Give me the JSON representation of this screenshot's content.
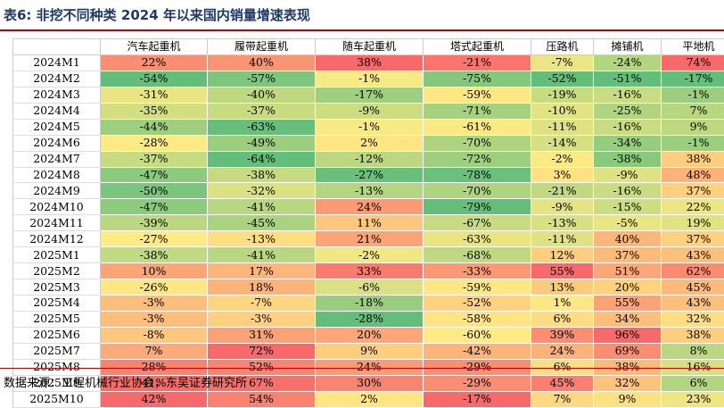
{
  "title": "表6:  非挖不同种类 2024 年以来国内销量增速表现",
  "source": "数据来源：工程机械行业协会，东吴证券研究所",
  "columns": [
    "汽车起重机",
    "履带起重机",
    "随车起重机",
    "塔式起重机",
    "压路机",
    "摊铺机",
    "平地机"
  ],
  "rows": [
    {
      "label": "2024M1",
      "values": [
        "22%",
        "40%",
        "38%",
        "-21%",
        "-7%",
        "-24%",
        "74%"
      ]
    },
    {
      "label": "2024M2",
      "values": [
        "-54%",
        "-57%",
        "-1%",
        "-75%",
        "-52%",
        "-51%",
        "-17%"
      ]
    },
    {
      "label": "2024M3",
      "values": [
        "-31%",
        "-40%",
        "-17%",
        "-59%",
        "-19%",
        "-16%",
        "-1%"
      ]
    },
    {
      "label": "2024M4",
      "values": [
        "-35%",
        "-37%",
        "-9%",
        "-71%",
        "-10%",
        "-25%",
        "7%"
      ]
    },
    {
      "label": "2024M5",
      "values": [
        "-44%",
        "-63%",
        "-1%",
        "-61%",
        "-11%",
        "-16%",
        "9%"
      ]
    },
    {
      "label": "2024M6",
      "values": [
        "-28%",
        "-49%",
        "2%",
        "-70%",
        "-14%",
        "-34%",
        "-1%"
      ]
    },
    {
      "label": "2024M7",
      "values": [
        "-37%",
        "-64%",
        "-12%",
        "-72%",
        "-2%",
        "-38%",
        "38%"
      ]
    },
    {
      "label": "2024M8",
      "values": [
        "-47%",
        "-38%",
        "-27%",
        "-78%",
        "3%",
        "-9%",
        "48%"
      ]
    },
    {
      "label": "2024M9",
      "values": [
        "-50%",
        "-32%",
        "-13%",
        "-70%",
        "-21%",
        "-16%",
        "37%"
      ]
    },
    {
      "label": "2024M10",
      "values": [
        "-47%",
        "-41%",
        "24%",
        "-79%",
        "-9%",
        "-15%",
        "22%"
      ]
    },
    {
      "label": "2024M11",
      "values": [
        "-39%",
        "-45%",
        "11%",
        "-67%",
        "-13%",
        "-5%",
        "19%"
      ]
    },
    {
      "label": "2024M12",
      "values": [
        "-27%",
        "-13%",
        "21%",
        "-63%",
        "-11%",
        "40%",
        "37%"
      ]
    },
    {
      "label": "2025M1",
      "values": [
        "-38%",
        "-41%",
        "-2%",
        "-68%",
        "12%",
        "37%",
        "43%"
      ]
    },
    {
      "label": "2025M2",
      "values": [
        "10%",
        "17%",
        "33%",
        "-33%",
        "55%",
        "51%",
        "62%"
      ]
    },
    {
      "label": "2025M3",
      "values": [
        "-26%",
        "18%",
        "-6%",
        "-59%",
        "13%",
        "20%",
        "45%"
      ]
    },
    {
      "label": "2025M4",
      "values": [
        "-3%",
        "-7%",
        "-18%",
        "-52%",
        "1%",
        "55%",
        "43%"
      ]
    },
    {
      "label": "2025M5",
      "values": [
        "-3%",
        "-3%",
        "-28%",
        "-58%",
        "6%",
        "34%",
        "32%"
      ]
    },
    {
      "label": "2025M6",
      "values": [
        "-8%",
        "31%",
        "20%",
        "-60%",
        "39%",
        "96%",
        "38%"
      ]
    },
    {
      "label": "2025M7",
      "values": [
        "7%",
        "72%",
        "9%",
        "-42%",
        "24%",
        "69%",
        "8%"
      ]
    },
    {
      "label": "2025M8",
      "values": [
        "28%",
        "52%",
        "24%",
        "-29%",
        "6%",
        "38%",
        "16%"
      ]
    },
    {
      "label": "2025M9",
      "values": [
        "41%",
        "67%",
        "30%",
        "-29%",
        "45%",
        "32%",
        "6%"
      ]
    },
    {
      "label": "2025M10",
      "values": [
        "42%",
        "54%",
        "2%",
        "-17%",
        "7%",
        "9%",
        "23%"
      ]
    }
  ],
  "colors": {
    "title": "#1f3a68",
    "rule": "#c00000",
    "scale_low": "#63be7b",
    "scale_mid": "#ffeb84",
    "scale_high": "#f8696b"
  }
}
